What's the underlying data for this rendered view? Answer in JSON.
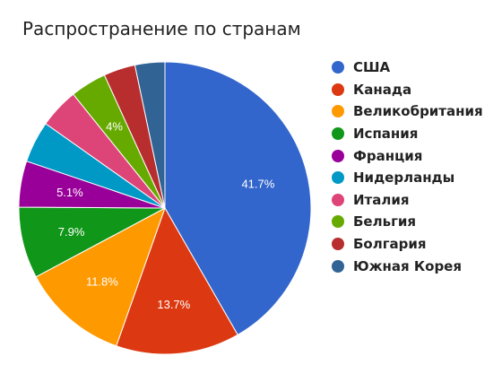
{
  "chart_data": {
    "type": "pie",
    "title": "Распространение по странам",
    "legend_position": "right",
    "slices": [
      {
        "name": "США",
        "value": 41.7,
        "label": "41.7%",
        "color": "#3366cc"
      },
      {
        "name": "Канада",
        "value": 13.7,
        "label": "13.7%",
        "color": "#dc3912"
      },
      {
        "name": "Великобритания",
        "value": 11.8,
        "label": "11.8%",
        "color": "#ff9900"
      },
      {
        "name": "Испания",
        "value": 7.9,
        "label": "7.9%",
        "color": "#109618"
      },
      {
        "name": "Франция",
        "value": 5.1,
        "label": "5.1%",
        "color": "#990099"
      },
      {
        "name": "Нидерланды",
        "value": 4.6,
        "label": "",
        "color": "#0099c6"
      },
      {
        "name": "Италия",
        "value": 4.4,
        "label": "",
        "color": "#dd4477"
      },
      {
        "name": "Бельгия",
        "value": 4.0,
        "label": "4%",
        "color": "#66aa00"
      },
      {
        "name": "Болгария",
        "value": 3.5,
        "label": "",
        "color": "#b82e2e"
      },
      {
        "name": "Южная Корея",
        "value": 3.3,
        "label": "",
        "color": "#316395"
      }
    ]
  }
}
